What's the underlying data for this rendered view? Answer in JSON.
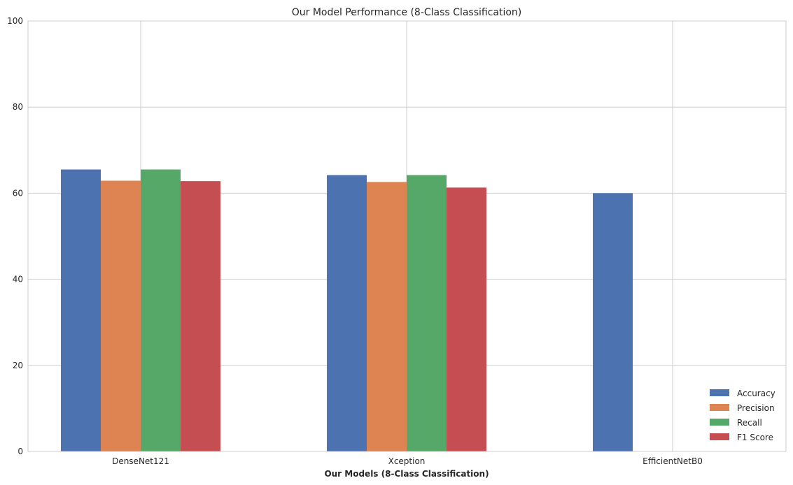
{
  "chart_data": {
    "type": "bar",
    "title": "Our Model Performance (8-Class Classification)",
    "xlabel": "Our Models (8-Class Classification)",
    "ylabel": "",
    "ylim": [
      0,
      100
    ],
    "yticks": [
      0,
      20,
      40,
      60,
      80,
      100
    ],
    "grid": true,
    "legend_position": "bottom-right",
    "categories": [
      "DenseNet121",
      "Xception",
      "EfficientNetB0"
    ],
    "series": [
      {
        "name": "Accuracy",
        "color": "#4c72b0",
        "values": [
          65.5,
          64.2,
          60.0
        ]
      },
      {
        "name": "Precision",
        "color": "#dd8452",
        "values": [
          62.9,
          62.6,
          null
        ]
      },
      {
        "name": "Recall",
        "color": "#55a868",
        "values": [
          65.5,
          64.2,
          null
        ]
      },
      {
        "name": "F1 Score",
        "color": "#c44e52",
        "values": [
          62.8,
          61.3,
          null
        ]
      }
    ]
  }
}
